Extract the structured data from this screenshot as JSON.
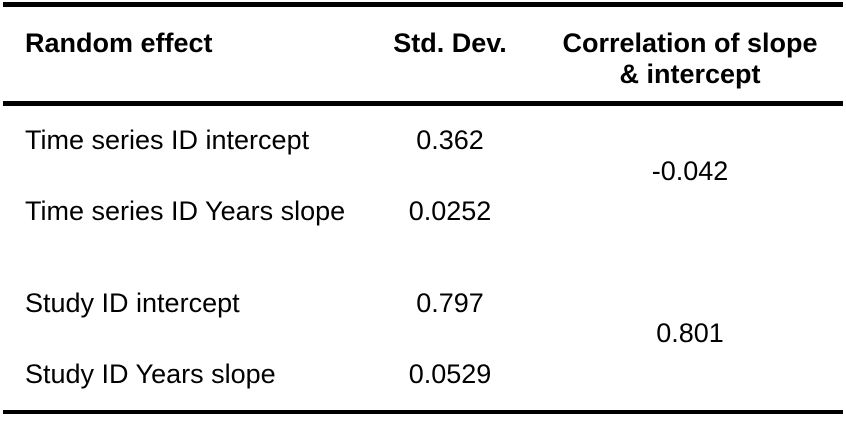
{
  "colors": {
    "background": "#ffffff",
    "text": "#000000",
    "rule": "#000000"
  },
  "table": {
    "columns": {
      "effect": "Random effect",
      "std_dev": "Std. Dev.",
      "correlation": "Correlation of slope & intercept"
    },
    "groups": [
      {
        "rows": [
          {
            "effect": "Time series ID intercept",
            "std_dev": "0.362"
          },
          {
            "effect": "Time series ID Years slope",
            "std_dev": "0.0252"
          }
        ],
        "correlation": "-0.042"
      },
      {
        "rows": [
          {
            "effect": "Study ID intercept",
            "std_dev": "0.797"
          },
          {
            "effect": "Study ID Years slope",
            "std_dev": "0.0529"
          }
        ],
        "correlation": "0.801"
      }
    ]
  }
}
